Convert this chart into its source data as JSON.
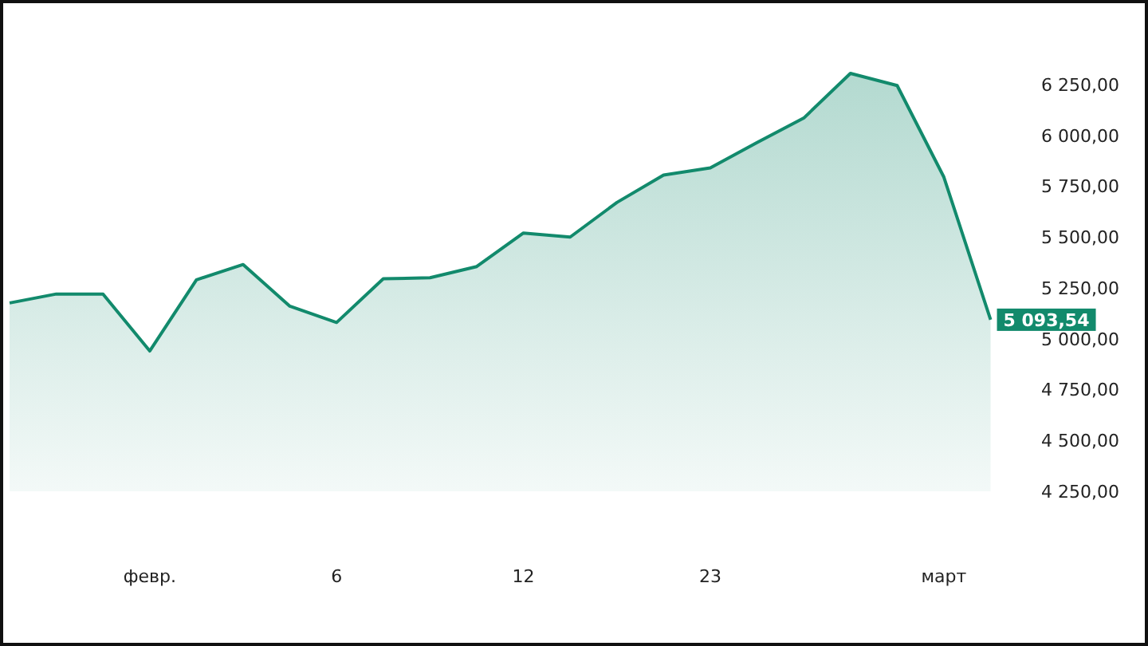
{
  "chart_data": {
    "type": "area",
    "categories": [
      null,
      null,
      null,
      "февр.",
      null,
      null,
      null,
      "6",
      null,
      null,
      null,
      "12",
      null,
      null,
      null,
      "23",
      null,
      null,
      null,
      null,
      "март",
      null
    ],
    "values": [
      5176,
      5220,
      5220,
      4940,
      5290,
      5365,
      5160,
      5080,
      5295,
      5300,
      5355,
      5520,
      5500,
      5670,
      5805,
      5840,
      5965,
      6085,
      6305,
      6245,
      5795,
      5093.54
    ],
    "value_labels": [
      null,
      null,
      null,
      null,
      null,
      null,
      null,
      null,
      null,
      null,
      null,
      null,
      null,
      null,
      null,
      null,
      null,
      null,
      null,
      null,
      null,
      "5 093,54"
    ],
    "color": "#128a6c",
    "ylim": [
      4250,
      6650
    ],
    "yticks": [
      {
        "value": 4250,
        "label": "4 250,00"
      },
      {
        "value": 4500,
        "label": "4 500,00"
      },
      {
        "value": 4750,
        "label": "4 750,00"
      },
      {
        "value": 5000,
        "label": "5 000,00"
      },
      {
        "value": 5250,
        "label": "5 250,00"
      },
      {
        "value": 5500,
        "label": "5 500,00"
      },
      {
        "value": 5750,
        "label": "5 750,00"
      },
      {
        "value": 6000,
        "label": "6 000,00"
      },
      {
        "value": 6250,
        "label": "6 250,00"
      }
    ]
  }
}
